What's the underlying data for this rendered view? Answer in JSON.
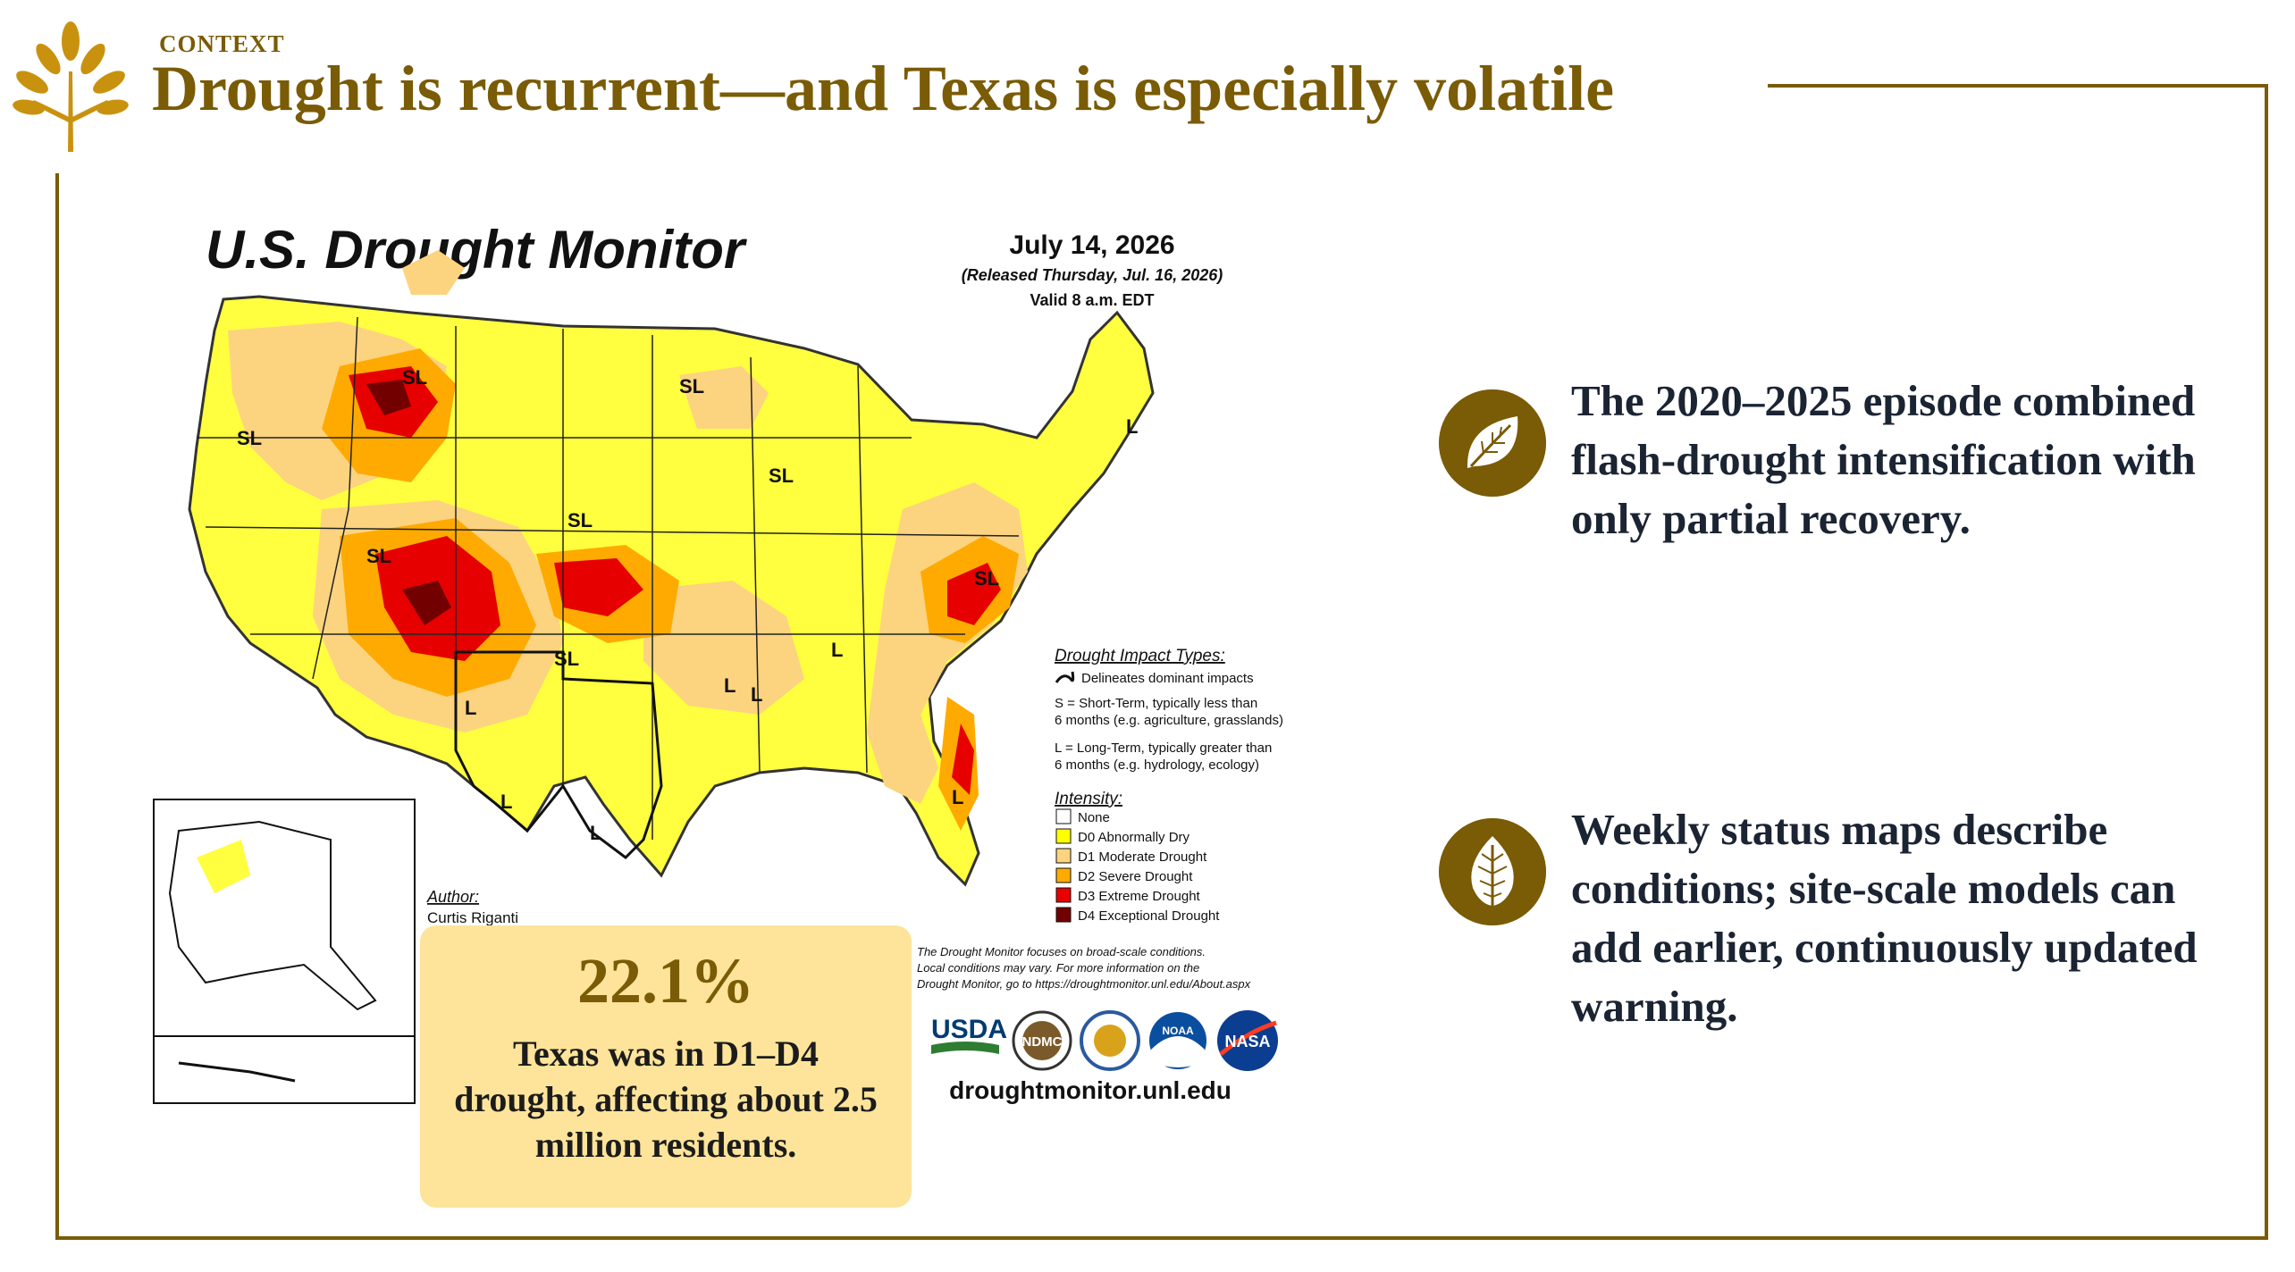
{
  "header": {
    "kicker": "CONTEXT",
    "title": "Drought is recurrent—and Texas is especially volatile",
    "logo_icon": "golden-sprout-logo",
    "accent_color": "#7a5b06"
  },
  "drought_map": {
    "title": "U.S. Drought Monitor",
    "date": "July 14, 2026",
    "released": "(Released Thursday, Jul. 16, 2026)",
    "valid": "Valid 8 a.m. EDT",
    "impact_types_heading": "Drought Impact Types:",
    "impact_delineates": "Delineates dominant impacts",
    "impact_s_line1": "S = Short-Term, typically less than",
    "impact_s_line2": "6 months (e.g. agriculture, grasslands)",
    "impact_l_line1": "L = Long-Term, typically greater than",
    "impact_l_line2": "6 months (e.g. hydrology, ecology)",
    "intensity_heading": "Intensity:",
    "intensity_items": [
      {
        "label": "None",
        "color": "#ffffff"
      },
      {
        "label": "D0 Abnormally Dry",
        "color": "#ffff00"
      },
      {
        "label": "D1 Moderate Drought",
        "color": "#fcd37f"
      },
      {
        "label": "D2 Severe Drought",
        "color": "#ffaa00"
      },
      {
        "label": "D3 Extreme Drought",
        "color": "#e60000"
      },
      {
        "label": "D4 Exceptional Drought",
        "color": "#730000"
      }
    ],
    "author_heading": "Author:",
    "author_name": "Curtis Riganti",
    "disclaimer_line1": "The Drought Monitor focuses on broad-scale conditions.",
    "disclaimer_line2": "Local conditions may vary. For more information on the",
    "disclaimer_line3": "Drought Monitor, go to https://droughtmonitor.unl.edu/About.aspx",
    "region_labels": [
      "SL",
      "SL",
      "SL",
      "SL",
      "SL",
      "SL",
      "SL",
      "SL",
      "L",
      "L",
      "L",
      "L",
      "L",
      "L",
      "L",
      "L"
    ],
    "logos": [
      "USDA",
      "NDMC",
      "NOAA",
      "NASA"
    ],
    "doc_icon": "department-seal-icon",
    "website": "droughtmonitor.unl.edu"
  },
  "callout": {
    "value": "22.1%",
    "text": "Texas was in D1–D4 drought, affecting about 2.5 million residents."
  },
  "bullets": [
    {
      "icon": "leaf-icon",
      "text": "The 2020–2025 episode combined flash-drought intensification with only partial recovery."
    },
    {
      "icon": "birch-leaf-icon",
      "text": "Weekly status maps describe conditions; site-scale models can add earlier, continuously updated warning."
    }
  ]
}
